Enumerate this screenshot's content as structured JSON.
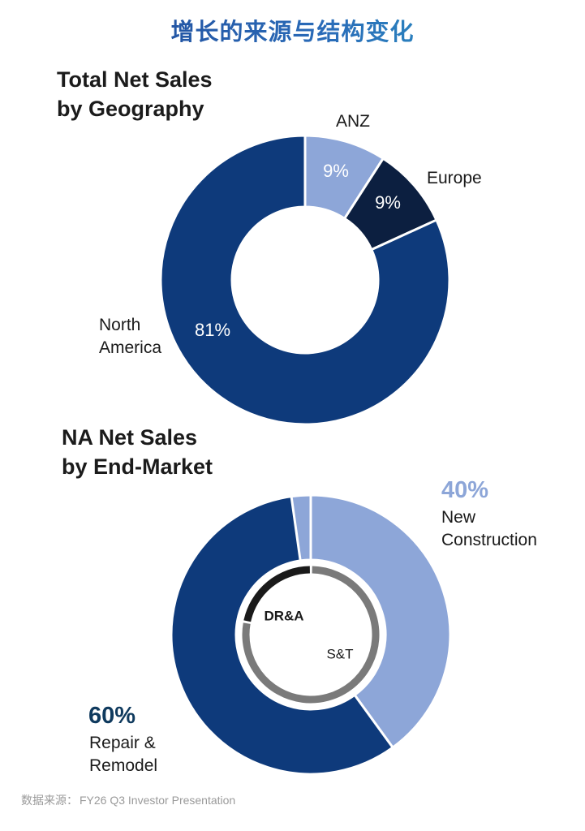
{
  "page_title": "增长的来源与结构变化",
  "source": {
    "label": "数据来源：",
    "text": "FY26 Q3 Investor Presentation"
  },
  "colors": {
    "dark_blue": "#0e3a7b",
    "light_blue": "#8da6d8",
    "navy": "#0c1f40",
    "black": "#1a1a1a",
    "gray": "#7a7a7a",
    "white": "#ffffff"
  },
  "chart_data": [
    {
      "type": "pie",
      "variant": "donut",
      "title_line1": "Total Net Sales",
      "title_line2": "by Geography",
      "slices": [
        {
          "name": "ANZ",
          "label": "ANZ",
          "value": 9,
          "value_label": "9%"
        },
        {
          "name": "Europe",
          "label": "Europe",
          "value": 9,
          "value_label": "9%"
        },
        {
          "name": "North America",
          "label_line1": "North",
          "label_line2": "America",
          "value": 81,
          "value_label": "81%"
        }
      ]
    },
    {
      "type": "pie",
      "variant": "donut",
      "title_line1": "NA Net Sales",
      "title_line2": "by End-Market",
      "slices": [
        {
          "name": "New Construction",
          "label_line1": "New",
          "label_line2": "Construction",
          "value": 40,
          "value_label": "40%"
        },
        {
          "name": "Repair & Remodel",
          "label_line1": "Repair &",
          "label_line2": "Remodel",
          "value": 60,
          "value_label": "60%"
        }
      ],
      "inner_ring": [
        {
          "name": "DR&A",
          "label": "DR&A",
          "value": 22
        },
        {
          "name": "S&T",
          "label": "S&T",
          "value": 78
        }
      ]
    }
  ]
}
